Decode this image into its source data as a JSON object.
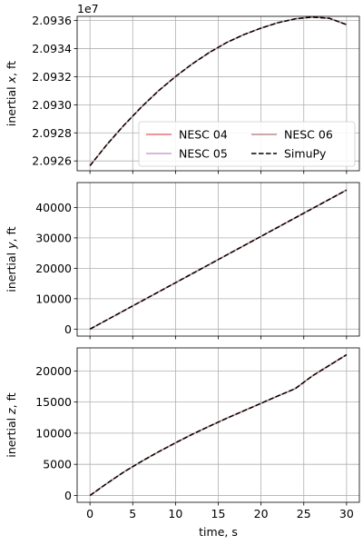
{
  "chart_data": [
    {
      "type": "line",
      "ylabel_prefix": "inertial ",
      "ylabel_var": "x",
      "ylabel_suffix": ", ft",
      "xlim": [
        -1.5,
        31.5
      ],
      "ylim": [
        20925300,
        20936300
      ],
      "offset_label": "1e7",
      "yticks": [
        20926000,
        20928000,
        20930000,
        20932000,
        20934000,
        20936000
      ],
      "ytick_labels": [
        "2.0926",
        "2.0928",
        "2.0930",
        "2.0932",
        "2.0934",
        "2.0936"
      ],
      "legend": {
        "placement": "lower-right",
        "columns": 2,
        "entries": [
          "NESC 04",
          "NESC 05",
          "NESC 06",
          "SimuPy"
        ]
      },
      "x": [
        0,
        2,
        4,
        6,
        8,
        10,
        12,
        14,
        16,
        18,
        20,
        22,
        24,
        26,
        28,
        30
      ],
      "series": [
        {
          "name": "NESC 04",
          "y": [
            20925660,
            20927180,
            20928560,
            20929830,
            20930990,
            20932010,
            20932930,
            20933740,
            20934440,
            20935000,
            20935460,
            20935850,
            20936120,
            20936250,
            20936160,
            20935710
          ]
        },
        {
          "name": "NESC 05",
          "y": [
            20925660,
            20927180,
            20928560,
            20929830,
            20930990,
            20932010,
            20932930,
            20933740,
            20934440,
            20935000,
            20935460,
            20935850,
            20936120,
            20936250,
            20936160,
            20935710
          ]
        },
        {
          "name": "NESC 06",
          "y": [
            20925660,
            20927180,
            20928560,
            20929830,
            20930990,
            20932010,
            20932930,
            20933740,
            20934440,
            20935000,
            20935460,
            20935850,
            20936120,
            20936250,
            20936160,
            20935710
          ]
        },
        {
          "name": "SimuPy",
          "y": [
            20925660,
            20927180,
            20928560,
            20929830,
            20930990,
            20932010,
            20932930,
            20933740,
            20934440,
            20935000,
            20935460,
            20935850,
            20936120,
            20936250,
            20936160,
            20935710
          ]
        }
      ]
    },
    {
      "type": "line",
      "ylabel_prefix": "inertial ",
      "ylabel_var": "y",
      "ylabel_suffix": ", ft",
      "xlim": [
        -1.5,
        31.5
      ],
      "ylim": [
        -2300,
        48200
      ],
      "yticks": [
        0,
        10000,
        20000,
        30000,
        40000
      ],
      "ytick_labels": [
        "0",
        "10000",
        "20000",
        "30000",
        "40000"
      ],
      "x": [
        0,
        2,
        4,
        6,
        8,
        10,
        12,
        14,
        16,
        18,
        20,
        22,
        24,
        26,
        28,
        30
      ],
      "series": [
        {
          "name": "NESC 04",
          "y": [
            0,
            3050,
            6100,
            9150,
            12200,
            15250,
            18300,
            21350,
            24400,
            27450,
            30500,
            33550,
            36600,
            39650,
            42700,
            45750
          ]
        },
        {
          "name": "NESC 05",
          "y": [
            0,
            3050,
            6100,
            9150,
            12200,
            15250,
            18300,
            21350,
            24400,
            27450,
            30500,
            33550,
            36600,
            39650,
            42700,
            45750
          ]
        },
        {
          "name": "NESC 06",
          "y": [
            0,
            3050,
            6100,
            9150,
            12200,
            15250,
            18300,
            21350,
            24400,
            27450,
            30500,
            33550,
            36600,
            39650,
            42700,
            45750
          ]
        },
        {
          "name": "SimuPy",
          "y": [
            0,
            3050,
            6100,
            9150,
            12200,
            15250,
            18300,
            21350,
            24400,
            27450,
            30500,
            33550,
            36600,
            39650,
            42700,
            45750
          ]
        }
      ]
    },
    {
      "type": "line",
      "ylabel_prefix": "inertial ",
      "ylabel_var": "z",
      "ylabel_suffix": ", ft",
      "xlabel": "time, s",
      "xlim": [
        -1.5,
        31.5
      ],
      "ylim": [
        -1100,
        23700
      ],
      "yticks": [
        0,
        5000,
        10000,
        15000,
        20000
      ],
      "ytick_labels": [
        "0",
        "5000",
        "10000",
        "15000",
        "20000"
      ],
      "xticks": [
        0,
        5,
        10,
        15,
        20,
        25,
        30
      ],
      "xtick_labels": [
        "0",
        "5",
        "10",
        "15",
        "20",
        "25",
        "30"
      ],
      "x": [
        0,
        2,
        4,
        6,
        8,
        10,
        12,
        14,
        16,
        18,
        20,
        22,
        24,
        26,
        28,
        30
      ],
      "series": [
        {
          "name": "NESC 04",
          "y": [
            0,
            1950,
            3800,
            5450,
            7000,
            8450,
            9850,
            11150,
            12400,
            13600,
            14800,
            16000,
            17150,
            19200,
            20900,
            22600
          ]
        },
        {
          "name": "NESC 05",
          "y": [
            0,
            1950,
            3800,
            5450,
            7000,
            8450,
            9850,
            11150,
            12400,
            13600,
            14800,
            16000,
            17150,
            19200,
            20900,
            22600
          ]
        },
        {
          "name": "NESC 06",
          "y": [
            0,
            1950,
            3800,
            5450,
            7000,
            8450,
            9850,
            11150,
            12400,
            13600,
            14800,
            16000,
            17150,
            19200,
            20900,
            22600
          ]
        },
        {
          "name": "SimuPy",
          "y": [
            0,
            1950,
            3800,
            5450,
            7000,
            8450,
            9850,
            11150,
            12400,
            13600,
            14800,
            16000,
            17150,
            19200,
            20900,
            22600
          ]
        }
      ]
    }
  ],
  "styles": {
    "series_colors": {
      "NESC 04": "#e8737a",
      "NESC 05": "#c9a2d0",
      "NESC 06": "#b89088",
      "SimuPy": "#000000"
    },
    "grid": true,
    "grid_color": "#b0b0b0",
    "dashed_series": "SimuPy"
  }
}
